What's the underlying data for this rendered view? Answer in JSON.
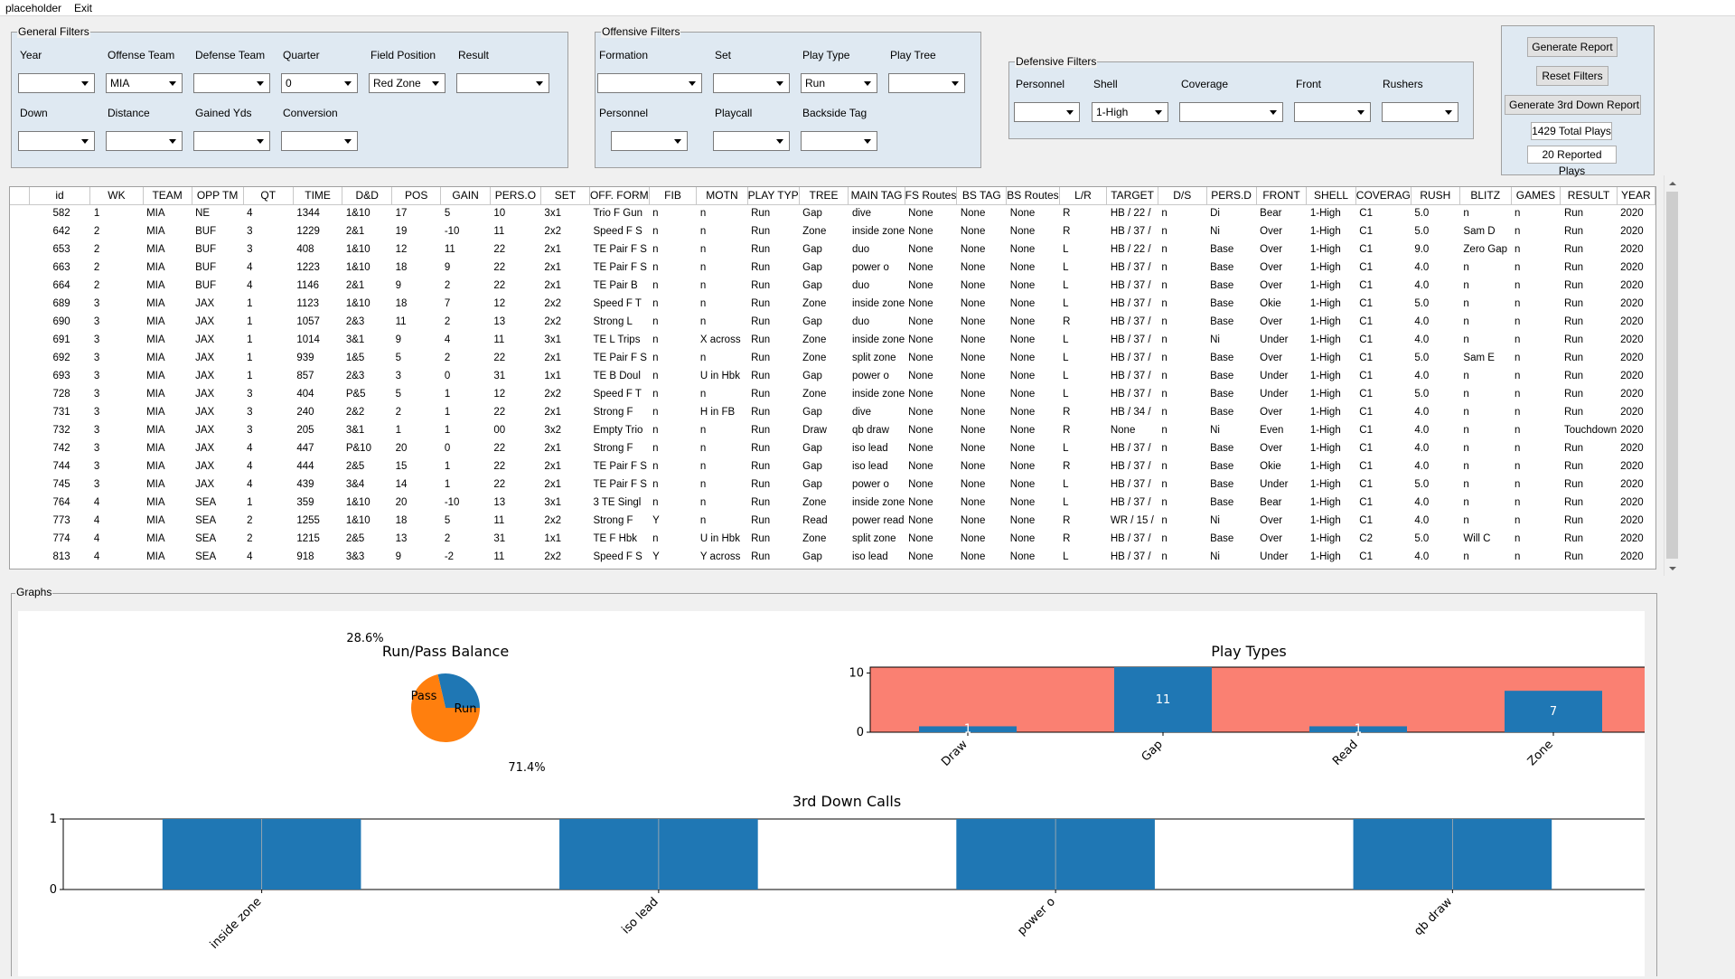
{
  "menu": {
    "items": [
      "placeholder",
      "Exit"
    ]
  },
  "general_filters": {
    "legend": "General Filters",
    "fields": [
      {
        "label": "Year",
        "value": ""
      },
      {
        "label": "Offense Team",
        "value": "MIA"
      },
      {
        "label": "Defense Team",
        "value": ""
      },
      {
        "label": "Quarter",
        "value": "0"
      },
      {
        "label": "Field Position",
        "value": "Red Zone"
      },
      {
        "label": "Result",
        "value": ""
      },
      {
        "label": "Down",
        "value": ""
      },
      {
        "label": "Distance",
        "value": ""
      },
      {
        "label": "Gained Yds",
        "value": ""
      },
      {
        "label": "Conversion",
        "value": ""
      }
    ]
  },
  "offensive_filters": {
    "legend": "Offensive Filters",
    "fields": [
      {
        "label": "Formation",
        "value": ""
      },
      {
        "label": "Set",
        "value": ""
      },
      {
        "label": "Play Type",
        "value": "Run"
      },
      {
        "label": "Play Tree",
        "value": ""
      },
      {
        "label": "Personnel",
        "value": ""
      },
      {
        "label": "Playcall",
        "value": ""
      },
      {
        "label": "Backside Tag",
        "value": ""
      }
    ]
  },
  "defensive_filters": {
    "legend": "Defensive Filters",
    "fields": [
      {
        "label": "Personnel",
        "value": ""
      },
      {
        "label": "Shell",
        "value": "1-High"
      },
      {
        "label": "Coverage",
        "value": ""
      },
      {
        "label": "Front",
        "value": ""
      },
      {
        "label": "Rushers",
        "value": ""
      }
    ]
  },
  "actions": {
    "generate_report": "Generate Report",
    "reset_filters": "Reset Filters",
    "generate_3rd_down": "Generate 3rd Down Report",
    "total_plays": "1429 Total Plays",
    "reported_plays": "20 Reported Plays"
  },
  "table": {
    "columns": [
      "id",
      "WK",
      "TEAM",
      "OPP TM",
      "QT",
      "TIME",
      "D&D",
      "POS",
      "GAIN",
      "PERS.O",
      "SET",
      "OFF. FORM",
      "FIB",
      "MOTN",
      "PLAY TYP",
      "TREE",
      "MAIN TAG",
      "FS Routes",
      "BS TAG",
      "BS Routes",
      "L/R",
      "TARGET",
      "D/S",
      "PERS.D",
      "FRONT",
      "SHELL",
      "COVERAG",
      "RUSH",
      "BLITZ",
      "GAMES",
      "RESULT",
      "YEAR"
    ],
    "rows": [
      [
        "582",
        "1",
        "MIA",
        "NE",
        "4",
        "1344",
        "1&10",
        "17",
        "5",
        "10",
        "3x1",
        "Trio F Gun",
        "n",
        "n",
        "Run",
        "Gap",
        "dive",
        "None",
        "None",
        "None",
        "R",
        "HB / 22 /",
        "n",
        "Di",
        "Bear",
        "1-High",
        "C1",
        "5.0",
        "n",
        "n",
        "Run",
        "2020"
      ],
      [
        "642",
        "2",
        "MIA",
        "BUF",
        "3",
        "1229",
        "2&1",
        "19",
        "-10",
        "11",
        "2x2",
        "Speed F S",
        "n",
        "n",
        "Run",
        "Zone",
        "inside zone",
        "None",
        "None",
        "None",
        "R",
        "HB / 37 /",
        "n",
        "Ni",
        "Over",
        "1-High",
        "C1",
        "5.0",
        "Sam D",
        "n",
        "Run",
        "2020"
      ],
      [
        "653",
        "2",
        "MIA",
        "BUF",
        "3",
        "408",
        "1&10",
        "12",
        "11",
        "22",
        "2x1",
        "TE Pair F S",
        "n",
        "n",
        "Run",
        "Gap",
        "duo",
        "None",
        "None",
        "None",
        "L",
        "HB / 22 /",
        "n",
        "Base",
        "Over",
        "1-High",
        "C1",
        "9.0",
        "Zero Gap",
        "n",
        "Run",
        "2020"
      ],
      [
        "663",
        "2",
        "MIA",
        "BUF",
        "4",
        "1223",
        "1&10",
        "18",
        "9",
        "22",
        "2x1",
        "TE Pair F S",
        "n",
        "n",
        "Run",
        "Gap",
        "power o",
        "None",
        "None",
        "None",
        "L",
        "HB / 37 /",
        "n",
        "Base",
        "Over",
        "1-High",
        "C1",
        "4.0",
        "n",
        "n",
        "Run",
        "2020"
      ],
      [
        "664",
        "2",
        "MIA",
        "BUF",
        "4",
        "1146",
        "2&1",
        "9",
        "2",
        "22",
        "2x1",
        "TE Pair B",
        "n",
        "n",
        "Run",
        "Gap",
        "duo",
        "None",
        "None",
        "None",
        "L",
        "HB / 37 /",
        "n",
        "Base",
        "Over",
        "1-High",
        "C1",
        "4.0",
        "n",
        "n",
        "Run",
        "2020"
      ],
      [
        "689",
        "3",
        "MIA",
        "JAX",
        "1",
        "1123",
        "1&10",
        "18",
        "7",
        "12",
        "2x2",
        "Speed F T",
        "n",
        "n",
        "Run",
        "Zone",
        "inside zone",
        "None",
        "None",
        "None",
        "L",
        "HB / 37 /",
        "n",
        "Base",
        "Okie",
        "1-High",
        "C1",
        "5.0",
        "n",
        "n",
        "Run",
        "2020"
      ],
      [
        "690",
        "3",
        "MIA",
        "JAX",
        "1",
        "1057",
        "2&3",
        "11",
        "2",
        "13",
        "2x2",
        "Strong L",
        "n",
        "n",
        "Run",
        "Gap",
        "duo",
        "None",
        "None",
        "None",
        "R",
        "HB / 37 /",
        "n",
        "Base",
        "Over",
        "1-High",
        "C1",
        "4.0",
        "n",
        "n",
        "Run",
        "2020"
      ],
      [
        "691",
        "3",
        "MIA",
        "JAX",
        "1",
        "1014",
        "3&1",
        "9",
        "4",
        "11",
        "3x1",
        "TE L Trips",
        "n",
        "X across",
        "Run",
        "Zone",
        "inside zone",
        "None",
        "None",
        "None",
        "L",
        "HB / 37 /",
        "n",
        "Ni",
        "Under",
        "1-High",
        "C1",
        "4.0",
        "n",
        "n",
        "Run",
        "2020"
      ],
      [
        "692",
        "3",
        "MIA",
        "JAX",
        "1",
        "939",
        "1&5",
        "5",
        "2",
        "22",
        "2x1",
        "TE Pair F S",
        "n",
        "n",
        "Run",
        "Zone",
        "split zone",
        "None",
        "None",
        "None",
        "L",
        "HB / 37 /",
        "n",
        "Base",
        "Over",
        "1-High",
        "C1",
        "5.0",
        "Sam E",
        "n",
        "Run",
        "2020"
      ],
      [
        "693",
        "3",
        "MIA",
        "JAX",
        "1",
        "857",
        "2&3",
        "3",
        "0",
        "31",
        "1x1",
        "TE B Doul",
        "n",
        "U in Hbk",
        "Run",
        "Gap",
        "power o",
        "None",
        "None",
        "None",
        "L",
        "HB / 37 /",
        "n",
        "Base",
        "Under",
        "1-High",
        "C1",
        "4.0",
        "n",
        "n",
        "Run",
        "2020"
      ],
      [
        "728",
        "3",
        "MIA",
        "JAX",
        "3",
        "404",
        "P&5",
        "5",
        "1",
        "12",
        "2x2",
        "Speed F T",
        "n",
        "n",
        "Run",
        "Zone",
        "inside zone",
        "None",
        "None",
        "None",
        "L",
        "HB / 37 /",
        "n",
        "Base",
        "Under",
        "1-High",
        "C1",
        "5.0",
        "n",
        "n",
        "Run",
        "2020"
      ],
      [
        "731",
        "3",
        "MIA",
        "JAX",
        "3",
        "240",
        "2&2",
        "2",
        "1",
        "22",
        "2x1",
        "Strong F",
        "n",
        "H in FB",
        "Run",
        "Gap",
        "dive",
        "None",
        "None",
        "None",
        "R",
        "HB / 34 /",
        "n",
        "Base",
        "Over",
        "1-High",
        "C1",
        "4.0",
        "n",
        "n",
        "Run",
        "2020"
      ],
      [
        "732",
        "3",
        "MIA",
        "JAX",
        "3",
        "205",
        "3&1",
        "1",
        "1",
        "00",
        "3x2",
        "Empty Trio",
        "n",
        "n",
        "Run",
        "Draw",
        "qb draw",
        "None",
        "None",
        "None",
        "R",
        "None",
        "n",
        "Ni",
        "Even",
        "1-High",
        "C1",
        "4.0",
        "n",
        "n",
        "Touchdown",
        "2020"
      ],
      [
        "742",
        "3",
        "MIA",
        "JAX",
        "4",
        "447",
        "P&10",
        "20",
        "0",
        "22",
        "2x1",
        "Strong F",
        "n",
        "n",
        "Run",
        "Gap",
        "iso lead",
        "None",
        "None",
        "None",
        "L",
        "HB / 37 /",
        "n",
        "Base",
        "Over",
        "1-High",
        "C1",
        "4.0",
        "n",
        "n",
        "Run",
        "2020"
      ],
      [
        "744",
        "3",
        "MIA",
        "JAX",
        "4",
        "444",
        "2&5",
        "15",
        "1",
        "22",
        "2x1",
        "TE Pair F S",
        "n",
        "n",
        "Run",
        "Gap",
        "iso lead",
        "None",
        "None",
        "None",
        "R",
        "HB / 37 /",
        "n",
        "Base",
        "Okie",
        "1-High",
        "C1",
        "4.0",
        "n",
        "n",
        "Run",
        "2020"
      ],
      [
        "745",
        "3",
        "MIA",
        "JAX",
        "4",
        "439",
        "3&4",
        "14",
        "1",
        "22",
        "2x1",
        "TE Pair F S",
        "n",
        "n",
        "Run",
        "Gap",
        "power o",
        "None",
        "None",
        "None",
        "L",
        "HB / 37 /",
        "n",
        "Base",
        "Under",
        "1-High",
        "C1",
        "5.0",
        "n",
        "n",
        "Run",
        "2020"
      ],
      [
        "764",
        "4",
        "MIA",
        "SEA",
        "1",
        "359",
        "1&10",
        "20",
        "-10",
        "13",
        "3x1",
        "3 TE Singl",
        "n",
        "n",
        "Run",
        "Zone",
        "inside zone",
        "None",
        "None",
        "None",
        "L",
        "HB / 37 /",
        "n",
        "Base",
        "Bear",
        "1-High",
        "C1",
        "4.0",
        "n",
        "n",
        "Run",
        "2020"
      ],
      [
        "773",
        "4",
        "MIA",
        "SEA",
        "2",
        "1255",
        "1&10",
        "18",
        "5",
        "11",
        "2x2",
        "Strong F",
        "Y",
        "n",
        "Run",
        "Read",
        "power read",
        "None",
        "None",
        "None",
        "R",
        "WR / 15 /",
        "n",
        "Ni",
        "Over",
        "1-High",
        "C1",
        "4.0",
        "n",
        "n",
        "Run",
        "2020"
      ],
      [
        "774",
        "4",
        "MIA",
        "SEA",
        "2",
        "1215",
        "2&5",
        "13",
        "2",
        "31",
        "1x1",
        "TE F Hbk",
        "n",
        "U in Hbk",
        "Run",
        "Zone",
        "split zone",
        "None",
        "None",
        "None",
        "R",
        "HB / 37 /",
        "n",
        "Base",
        "Over",
        "1-High",
        "C2",
        "5.0",
        "Will C",
        "n",
        "Run",
        "2020"
      ],
      [
        "813",
        "4",
        "MIA",
        "SEA",
        "4",
        "918",
        "3&3",
        "9",
        "-2",
        "11",
        "2x2",
        "Speed F S",
        "Y",
        "Y across",
        "Run",
        "Gap",
        "iso lead",
        "None",
        "None",
        "None",
        "L",
        "HB / 37 /",
        "n",
        "Ni",
        "Under",
        "1-High",
        "C1",
        "4.0",
        "n",
        "n",
        "Run",
        "2020"
      ]
    ]
  },
  "graphs": {
    "legend": "Graphs"
  },
  "chart_data": [
    {
      "type": "pie",
      "title": "Run/Pass Balance",
      "labels": [
        "Pass",
        "Run"
      ],
      "values": [
        28.6,
        71.4
      ],
      "pct_labels": [
        "28.6%",
        "71.4%"
      ],
      "colors": [
        "#1f77b4",
        "#ff7f0e"
      ]
    },
    {
      "type": "bar",
      "title": "Play Types",
      "categories": [
        "Draw",
        "Gap",
        "Read",
        "Zone"
      ],
      "values": [
        1,
        11,
        1,
        7
      ],
      "data_labels": [
        "1",
        "11",
        "1",
        "7"
      ],
      "yticks": [
        "0",
        "10"
      ],
      "ylim": [
        0,
        11
      ],
      "bar_color": "#1f77b4",
      "background_color": "#fa8072"
    },
    {
      "type": "bar",
      "title": "3rd Down Calls",
      "categories": [
        "inside zone",
        "iso lead",
        "power o",
        "qb draw"
      ],
      "values": [
        1,
        1,
        1,
        1
      ],
      "yticks": [
        "0",
        "1"
      ],
      "ylim": [
        0,
        1
      ],
      "bar_color": "#1f77b4",
      "grid": "vertical"
    }
  ]
}
